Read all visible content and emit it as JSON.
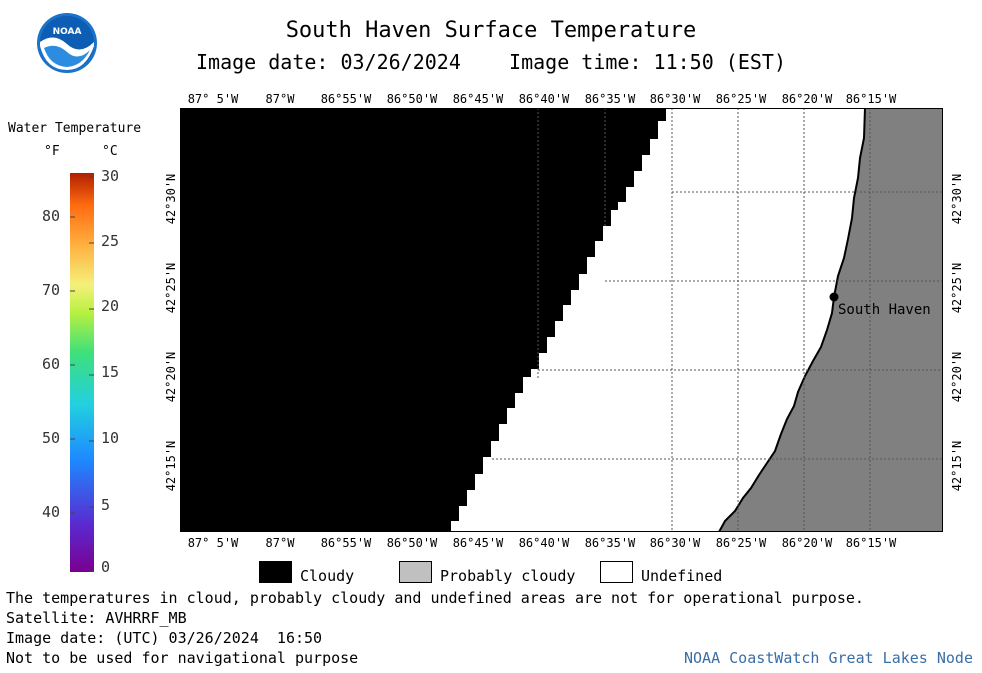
{
  "header": {
    "title": "South Haven Surface Temperature",
    "subtitle": "Image date: 03/26/2024    Image time: 11:50 (EST)",
    "logo_text": "NOAA"
  },
  "legend": {
    "title": "Water Temperature",
    "unit_f": "°F",
    "unit_c": "°C",
    "f_ticks": [
      "80",
      "70",
      "60",
      "50",
      "40"
    ],
    "c_ticks": [
      "30",
      "25",
      "20",
      "15",
      "10",
      "5",
      "0"
    ]
  },
  "map": {
    "lon_labels": [
      "87° 5'W",
      "87°W",
      "86°55'W",
      "86°50'W",
      "86°45'W",
      "86°40'W",
      "86°35'W",
      "86°30'W",
      "86°25'W",
      "86°20'W",
      "86°15'W"
    ],
    "lat_labels": [
      "42°30'N",
      "42°25'N",
      "42°20'N",
      "42°15'N"
    ],
    "city": "South Haven",
    "colors": {
      "cloudy": "#000000",
      "land": "#808080",
      "undefined": "#ffffff",
      "probably_cloudy": "#c0c0c0"
    }
  },
  "key": {
    "cloudy": "Cloudy",
    "probably_cloudy": "Probably cloudy",
    "undefined": "Undefined"
  },
  "notes": {
    "disclaimer": "The temperatures in cloud, probably cloudy and undefined areas are not for operational purpose.",
    "satellite": "Satellite: AVHRRF_MB",
    "utc": "Image date: (UTC) 03/26/2024  16:50",
    "nav": "Not to be used for navigational purpose",
    "credit": "NOAA CoastWatch Great Lakes Node"
  }
}
